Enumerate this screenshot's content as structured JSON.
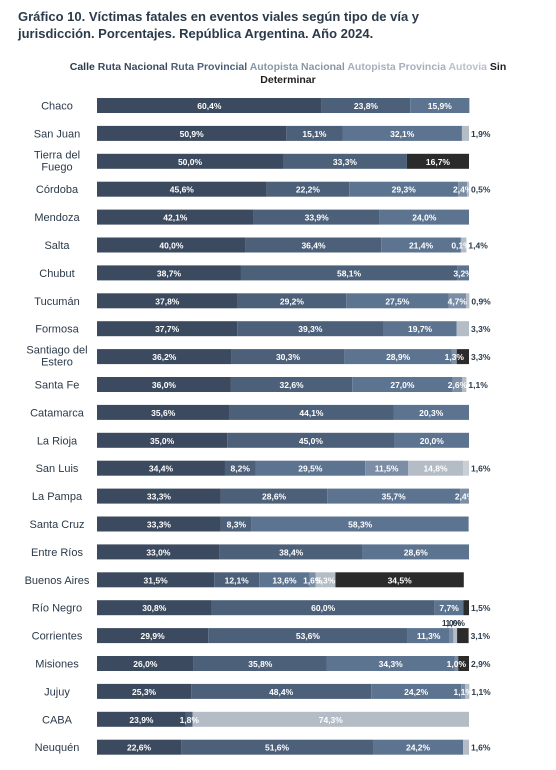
{
  "title": {
    "lead": "Gráfico 10.",
    "text": "Víctimas fatales en eventos viales según tipo de vía y jurisdicción. Porcentajes. República Argentina. Año 2024."
  },
  "colors": {
    "Calle": "#3b4a5e",
    "Ruta Nacional": "#4d6079",
    "Ruta Provincial": "#5d7491",
    "Autopista Nacional": "#7b8ea6",
    "Autopista Provincia": "#b4bcc6",
    "Autovia": "#c9cfd6",
    "Sin Determinar": "#2b2b2b"
  },
  "chart_data": {
    "type": "bar",
    "orientation": "horizontal",
    "stacked": true,
    "unit": "%",
    "xlim": [
      0,
      100
    ],
    "grid": false,
    "legend_position": "top",
    "legend": [
      "Calle",
      "Ruta Nacional",
      "Ruta Provincial",
      "Autopista Nacional",
      "Autopista Provincia",
      "Autovia",
      "Sin Determinar"
    ],
    "categories": [
      "Chaco",
      "San Juan",
      "Tierra del Fuego",
      "Córdoba",
      "Mendoza",
      "Salta",
      "Chubut",
      "Tucumán",
      "Formosa",
      "Santiago del Estero",
      "Santa Fe",
      "Catamarca",
      "La Rioja",
      "San Luis",
      "La Pampa",
      "Santa Cruz",
      "Entre Ríos",
      "Buenos Aires",
      "Río Negro",
      "Corrientes",
      "Misiones",
      "Jujuy",
      "CABA",
      "Neuquén"
    ],
    "series": [
      {
        "name": "Calle",
        "values": [
          60.4,
          50.9,
          50.0,
          45.6,
          42.1,
          40.0,
          38.7,
          37.8,
          37.7,
          36.2,
          36.0,
          35.6,
          35.0,
          34.4,
          33.3,
          33.3,
          33.0,
          31.5,
          30.8,
          29.9,
          26.0,
          25.3,
          23.9,
          22.6
        ]
      },
      {
        "name": "Ruta Nacional",
        "values": [
          23.8,
          15.1,
          33.3,
          22.2,
          33.9,
          36.4,
          58.1,
          29.2,
          39.3,
          30.3,
          32.6,
          44.1,
          45.0,
          8.2,
          28.6,
          8.3,
          38.4,
          12.1,
          60.0,
          53.6,
          35.8,
          48.4,
          1.8,
          51.6
        ]
      },
      {
        "name": "Ruta Provincial",
        "values": [
          15.9,
          32.1,
          0,
          29.3,
          24.0,
          21.4,
          3.2,
          27.5,
          19.7,
          28.9,
          27.0,
          20.3,
          20.0,
          29.5,
          35.7,
          58.3,
          28.6,
          13.6,
          7.7,
          11.3,
          34.3,
          24.2,
          0,
          24.2
        ]
      },
      {
        "name": "Autopista Nacional",
        "values": [
          0,
          0,
          0,
          2.4,
          0,
          0.1,
          0,
          4.7,
          0,
          1.3,
          2.6,
          0,
          0,
          11.5,
          2.4,
          0,
          0,
          1.6,
          0,
          1.0,
          1.0,
          1.1,
          0,
          0
        ]
      },
      {
        "name": "Autopista Provincia",
        "values": [
          0,
          1.9,
          0,
          0.5,
          0,
          1.4,
          0,
          0.9,
          3.3,
          0,
          1.1,
          0,
          0,
          14.8,
          0,
          0,
          0,
          5.3,
          0,
          1.0,
          0,
          1.1,
          74.3,
          1.6
        ]
      },
      {
        "name": "Autovia",
        "values": [
          0,
          0,
          0,
          0,
          0,
          0,
          0,
          0,
          0,
          0,
          0,
          0,
          0,
          1.6,
          0,
          0,
          0,
          0,
          0,
          0,
          0,
          0,
          0,
          0
        ]
      },
      {
        "name": "Sin Determinar",
        "values": [
          0,
          0,
          16.7,
          0,
          0,
          0,
          0,
          0,
          0,
          3.3,
          0,
          0,
          0,
          0,
          0,
          0,
          0,
          34.5,
          1.5,
          3.1,
          2.9,
          0,
          0,
          0
        ]
      }
    ],
    "labels": [
      [
        [
          "60,4%",
          0,
          "in"
        ],
        [
          "23,8%",
          1,
          "in"
        ],
        [
          "15,9%",
          2,
          "in"
        ]
      ],
      [
        [
          "50,9%",
          0,
          "in"
        ],
        [
          "15,1%",
          1,
          "in"
        ],
        [
          "32,1%",
          2,
          "in"
        ],
        [
          "1,9%",
          4,
          "out"
        ]
      ],
      [
        [
          "50,0%",
          0,
          "in"
        ],
        [
          "33,3%",
          1,
          "in"
        ],
        [
          "16,7%",
          6,
          "in"
        ]
      ],
      [
        [
          "45,6%",
          0,
          "in"
        ],
        [
          "22,2%",
          1,
          "in"
        ],
        [
          "29,3%",
          2,
          "in"
        ],
        [
          "2,4%",
          3,
          "in"
        ],
        [
          "0,5%",
          4,
          "out"
        ]
      ],
      [
        [
          "42,1%",
          0,
          "in"
        ],
        [
          "33,9%",
          1,
          "in"
        ],
        [
          "24,0%",
          2,
          "in"
        ]
      ],
      [
        [
          "40,0%",
          0,
          "in"
        ],
        [
          "36,4%",
          1,
          "in"
        ],
        [
          "21,4%",
          2,
          "in"
        ],
        [
          "0,1%",
          3,
          "in"
        ],
        [
          "1,4%",
          4,
          "out"
        ]
      ],
      [
        [
          "38,7%",
          0,
          "in"
        ],
        [
          "58,1%",
          1,
          "in"
        ],
        [
          "3,2%",
          2,
          "in"
        ]
      ],
      [
        [
          "37,8%",
          0,
          "in"
        ],
        [
          "29,2%",
          1,
          "in"
        ],
        [
          "27,5%",
          2,
          "in"
        ],
        [
          "4,7%",
          3,
          "in"
        ],
        [
          "0,9%",
          4,
          "out"
        ]
      ],
      [
        [
          "37,7%",
          0,
          "in"
        ],
        [
          "39,3%",
          1,
          "in"
        ],
        [
          "19,7%",
          2,
          "in"
        ],
        [
          "3,3%",
          4,
          "out"
        ]
      ],
      [
        [
          "36,2%",
          0,
          "in"
        ],
        [
          "30,3%",
          1,
          "in"
        ],
        [
          "28,9%",
          2,
          "in"
        ],
        [
          "1,3%",
          3,
          "in"
        ],
        [
          "3,3%",
          6,
          "out"
        ]
      ],
      [
        [
          "36,0%",
          0,
          "in"
        ],
        [
          "32,6%",
          1,
          "in"
        ],
        [
          "27,0%",
          2,
          "in"
        ],
        [
          "2,6%",
          3,
          "in"
        ],
        [
          "1,1%",
          4,
          "out"
        ]
      ],
      [
        [
          "35,6%",
          0,
          "in"
        ],
        [
          "44,1%",
          1,
          "in"
        ],
        [
          "20,3%",
          2,
          "in"
        ]
      ],
      [
        [
          "35,0%",
          0,
          "in"
        ],
        [
          "45,0%",
          1,
          "in"
        ],
        [
          "20,0%",
          2,
          "in"
        ]
      ],
      [
        [
          "34,4%",
          0,
          "in"
        ],
        [
          "8,2%",
          1,
          "in"
        ],
        [
          "29,5%",
          2,
          "in"
        ],
        [
          "11,5%",
          3,
          "in"
        ],
        [
          "14,8%",
          4,
          "in"
        ],
        [
          "1,6%",
          5,
          "out"
        ]
      ],
      [
        [
          "33,3%",
          0,
          "in"
        ],
        [
          "28,6%",
          1,
          "in"
        ],
        [
          "35,7%",
          2,
          "in"
        ],
        [
          "2,4%",
          3,
          "in"
        ]
      ],
      [
        [
          "33,3%",
          0,
          "in"
        ],
        [
          "8,3%",
          1,
          "in"
        ],
        [
          "58,3%",
          2,
          "in"
        ]
      ],
      [
        [
          "33,0%",
          0,
          "in"
        ],
        [
          "38,4%",
          1,
          "in"
        ],
        [
          "28,6%",
          2,
          "in"
        ]
      ],
      [
        [
          "31,5%",
          0,
          "in"
        ],
        [
          "12,1%",
          1,
          "in"
        ],
        [
          "13,6%",
          2,
          "in"
        ],
        [
          "1,6%",
          3,
          "in"
        ],
        [
          "5,3%",
          4,
          "in"
        ],
        [
          "34,5%",
          6,
          "in"
        ]
      ],
      [
        [
          "30,8%",
          0,
          "in"
        ],
        [
          "60,0%",
          1,
          "in"
        ],
        [
          "7,7%",
          2,
          "in"
        ],
        [
          "1,5%",
          6,
          "out"
        ]
      ],
      [
        [
          "29,9%",
          0,
          "in"
        ],
        [
          "53,6%",
          1,
          "in"
        ],
        [
          "11,3%",
          2,
          "in"
        ],
        [
          "1,0%",
          3,
          "above"
        ],
        [
          "1,0%",
          4,
          "above"
        ],
        [
          "3,1%",
          6,
          "out"
        ]
      ],
      [
        [
          "26,0%",
          0,
          "in"
        ],
        [
          "35,8%",
          1,
          "in"
        ],
        [
          "34,3%",
          2,
          "in"
        ],
        [
          "1,0%",
          3,
          "in"
        ],
        [
          "2,9%",
          6,
          "out"
        ]
      ],
      [
        [
          "25,3%",
          0,
          "in"
        ],
        [
          "48,4%",
          1,
          "in"
        ],
        [
          "24,2%",
          2,
          "in"
        ],
        [
          "1,1%",
          3,
          "in"
        ],
        [
          "1,1%",
          4,
          "out"
        ]
      ],
      [
        [
          "23,9%",
          0,
          "in"
        ],
        [
          "1,8%",
          1,
          "in"
        ],
        [
          "74,3%",
          4,
          "in"
        ]
      ],
      [
        [
          "22,6%",
          0,
          "in"
        ],
        [
          "51,6%",
          1,
          "in"
        ],
        [
          "24,2%",
          2,
          "in"
        ],
        [
          "1,6%",
          4,
          "out"
        ]
      ]
    ]
  }
}
